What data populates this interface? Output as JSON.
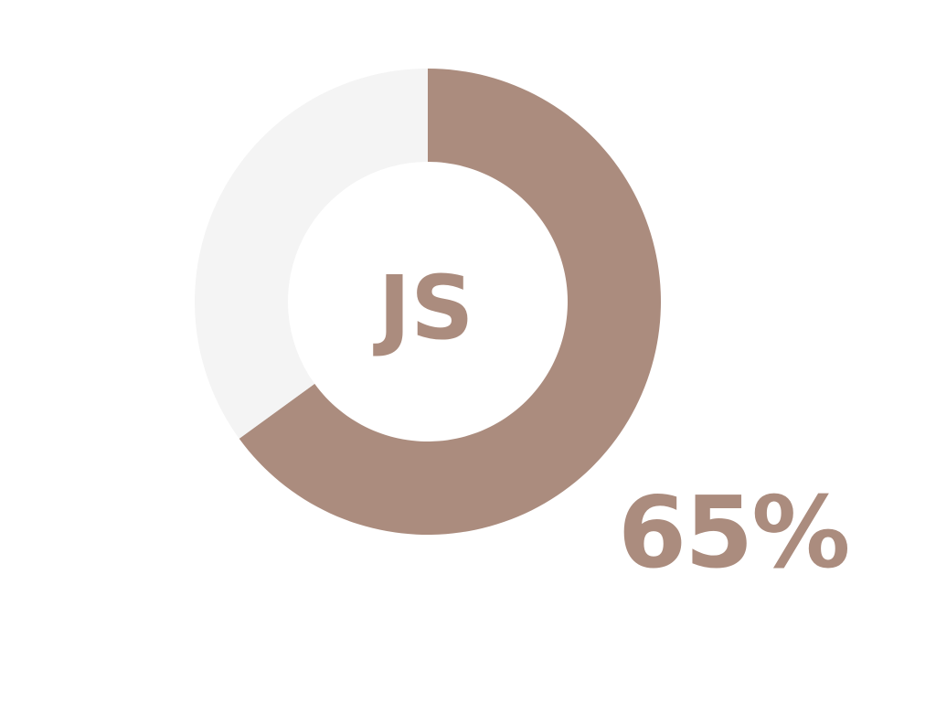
{
  "chart_data": {
    "type": "pie",
    "variant": "donut",
    "center_label": "JS",
    "value_label": "65%",
    "slices": [
      {
        "value": 65
      },
      {
        "value": 35
      }
    ]
  },
  "colors": {
    "filled": "#ab8c7e",
    "remainder": "#f4f4f4",
    "background": "#ffffff"
  }
}
